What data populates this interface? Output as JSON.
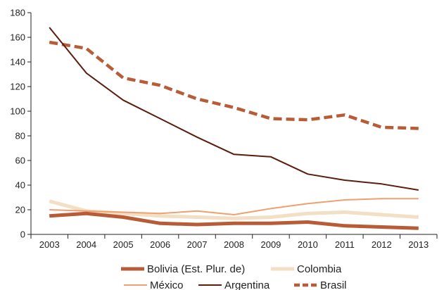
{
  "chart_data": {
    "type": "line",
    "title": "",
    "xlabel": "",
    "ylabel": "",
    "ylim": [
      0,
      180
    ],
    "yticks": [
      0,
      20,
      40,
      60,
      80,
      100,
      120,
      140,
      160,
      180
    ],
    "categories": [
      "2003",
      "2004",
      "2005",
      "2006",
      "2007",
      "2008",
      "2009",
      "2010",
      "2011",
      "2012",
      "2013"
    ],
    "grid": false,
    "legend_position": "bottom",
    "series": [
      {
        "name": "Bolivia (Est. Plur. de)",
        "color": "#b85c38",
        "style": "thick",
        "values": [
          15,
          17,
          14,
          9,
          8,
          9,
          9,
          10,
          7,
          6,
          5
        ]
      },
      {
        "name": "Colombia",
        "color": "#f2dfc4",
        "style": "thick",
        "values": [
          27,
          19,
          17,
          15,
          14,
          13,
          14,
          17,
          18,
          16,
          14
        ]
      },
      {
        "name": "México",
        "color": "#f0a070",
        "style": "thin",
        "values": [
          20,
          19,
          18,
          17,
          19,
          16,
          21,
          25,
          28,
          29,
          29
        ]
      },
      {
        "name": "Argentina",
        "color": "#5a1d0e",
        "style": "thin",
        "values": [
          168,
          131,
          109,
          94,
          79,
          65,
          63,
          49,
          44,
          41,
          36
        ]
      },
      {
        "name": "Brasil",
        "color": "#b85c38",
        "style": "dashed",
        "values": [
          156,
          151,
          127,
          121,
          110,
          103,
          94,
          93,
          97,
          87,
          86
        ]
      }
    ]
  }
}
